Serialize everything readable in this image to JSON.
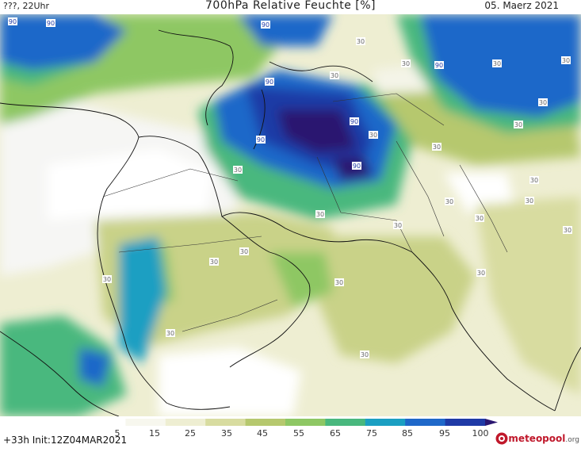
{
  "header": {
    "left": "???, 22Uhr",
    "title": "700hPa Relative Feuchte [%]",
    "date": "05. Maerz 2021"
  },
  "footer": {
    "run": "+33h Init:12Z04MAR2021",
    "logo_name": "meteopool",
    "logo_tld": ".org"
  },
  "colorbar": {
    "ticks": [
      "5",
      "15",
      "25",
      "35",
      "45",
      "55",
      "65",
      "75",
      "85",
      "95",
      "100"
    ],
    "colors": [
      "#ffffff",
      "#f7f7ee",
      "#eeeed2",
      "#d8dca0",
      "#b6c86e",
      "#8ec764",
      "#49b87e",
      "#1b9fc2",
      "#1f68c9",
      "#1f3aa6",
      "#2a1670"
    ]
  },
  "contour_labels": [
    {
      "text": "90",
      "id": "l1"
    },
    {
      "text": "90",
      "id": "l2"
    },
    {
      "text": "90",
      "id": "l3"
    },
    {
      "text": "90",
      "id": "l4"
    },
    {
      "text": "90",
      "id": "l5"
    },
    {
      "text": "90",
      "id": "l6"
    },
    {
      "text": "90",
      "id": "l7"
    },
    {
      "text": "90",
      "id": "l8"
    },
    {
      "text": "30",
      "id": "m1"
    },
    {
      "text": "30",
      "id": "m2"
    },
    {
      "text": "30",
      "id": "m3"
    },
    {
      "text": "30",
      "id": "m4"
    },
    {
      "text": "30",
      "id": "m5"
    },
    {
      "text": "30",
      "id": "m6"
    },
    {
      "text": "30",
      "id": "m7"
    },
    {
      "text": "30",
      "id": "m8"
    },
    {
      "text": "30",
      "id": "m9"
    },
    {
      "text": "30",
      "id": "m10"
    },
    {
      "text": "30",
      "id": "m11"
    },
    {
      "text": "30",
      "id": "m12"
    },
    {
      "text": "30",
      "id": "m13"
    },
    {
      "text": "30",
      "id": "m14"
    },
    {
      "text": "30",
      "id": "m15"
    },
    {
      "text": "30",
      "id": "m16"
    },
    {
      "text": "30",
      "id": "m17"
    },
    {
      "text": "30",
      "id": "m18"
    },
    {
      "text": "30",
      "id": "m19"
    },
    {
      "text": "30",
      "id": "m20"
    },
    {
      "text": "30",
      "id": "m21"
    },
    {
      "text": "30",
      "id": "m22"
    },
    {
      "text": "30",
      "id": "m23"
    },
    {
      "text": "30",
      "id": "m24"
    }
  ]
}
